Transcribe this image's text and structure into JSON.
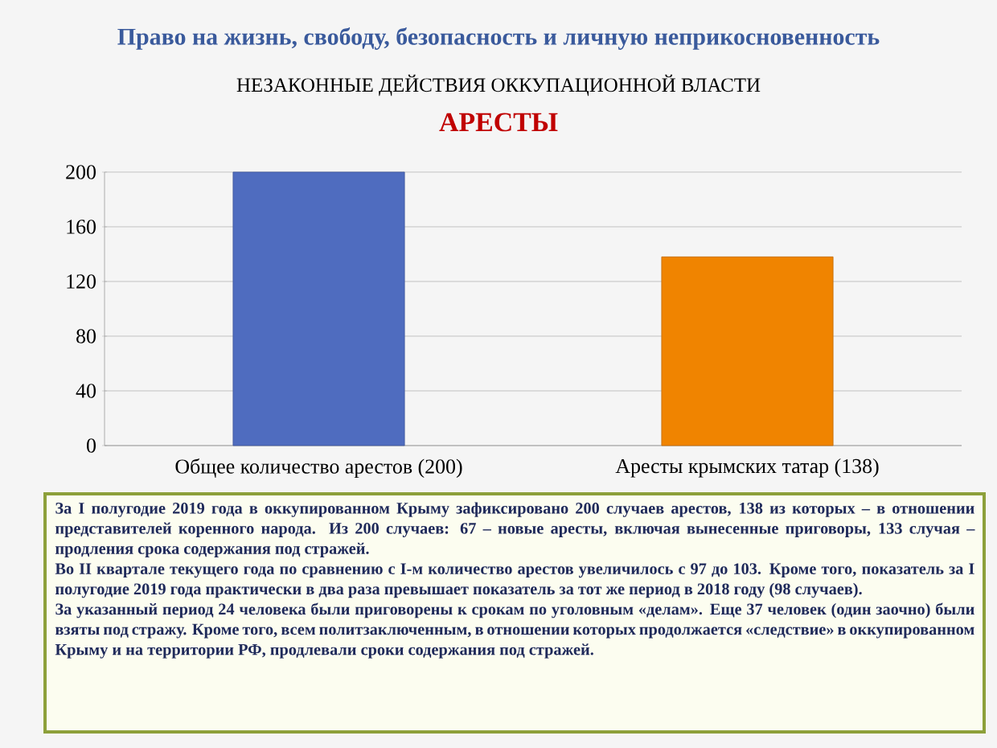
{
  "chart_data": {
    "type": "bar",
    "title": "Право на жизнь, свободу, безопасность и личную неприкосновенность",
    "subtitle": "НЕЗАКОННЫЕ ДЕЙСТВИЯ ОККУПАЦИОННОЙ ВЛАСТИ",
    "categories": [
      "Общее количество арестов (200)",
      "Аресты крымских татар (138)"
    ],
    "values": [
      200,
      138
    ],
    "colors": [
      "#4f6cbf",
      "#f08400"
    ],
    "ylim": [
      0,
      200
    ],
    "yticks": [
      0,
      40,
      80,
      120,
      160,
      200
    ],
    "grid": "y",
    "annotations": [
      "АРЕСТЫ",
      "За I полугодие 2019 года в оккупированном Крыму зафиксировано 200 случаев арестов, 138 из которых – в отношении представителей коренного народа. Из 200 случаев: 67 – новые аресты, включая вынесенные приговоры, 133 случая – продления срока содержания под стражей.",
      "Во II квартале текущего года по сравнению с I-м количество арестов увеличилось с 97 до 103. Кроме того, показатель за I полугодие 2019 года практически в два раза превышает показатель за тот же период в 2018 году (98 случаев).",
      "За указанный период 24 человека были приговорены к срокам по уголовным «делам». Еще 37 человек (один заочно) были взяты под стражу. Кроме того, всем политзаключенным, в отношении которых продолжается «следствие» в оккупированном Крыму и на территории РФ, продлевали сроки содержания под стражей."
    ]
  }
}
